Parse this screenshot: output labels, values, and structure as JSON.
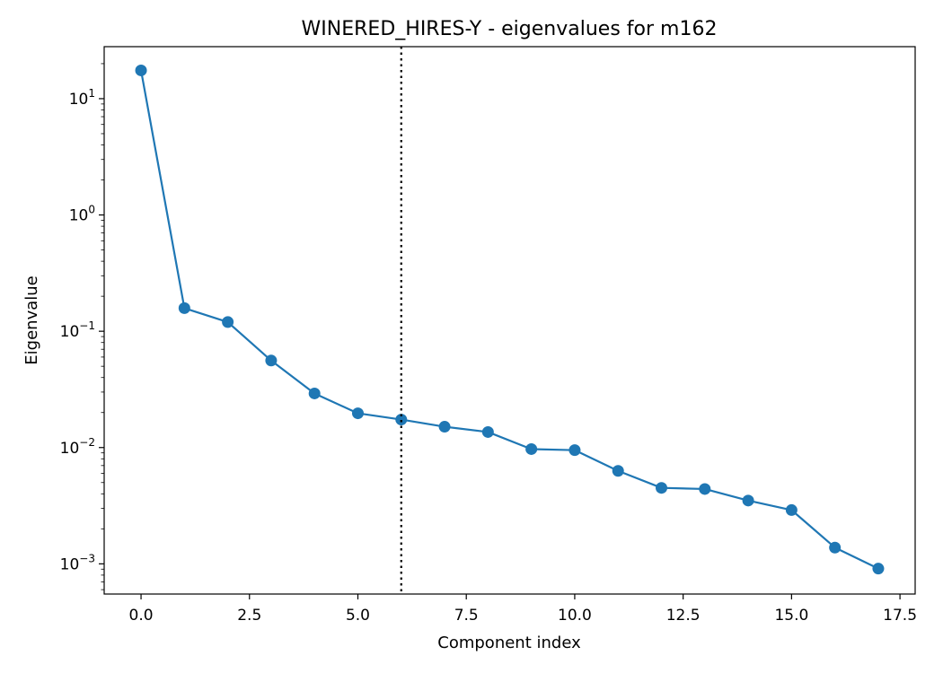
{
  "chart_data": {
    "type": "line",
    "title": "WINERED_HIRES-Y - eigenvalues for m162",
    "xlabel": "Component index",
    "ylabel": "Eigenvalue",
    "yscale": "log",
    "xlim": [
      -0.85,
      17.85
    ],
    "ylim": [
      0.00055,
      28
    ],
    "xticks": [
      0.0,
      2.5,
      5.0,
      7.5,
      10.0,
      12.5,
      15.0,
      17.5
    ],
    "xtick_labels": [
      "0.0",
      "2.5",
      "5.0",
      "7.5",
      "10.0",
      "12.5",
      "15.0",
      "17.5"
    ],
    "yticks": [
      {
        "value": 0.001,
        "base": "10",
        "exp": "−3"
      },
      {
        "value": 0.01,
        "base": "10",
        "exp": "−2"
      },
      {
        "value": 0.1,
        "base": "10",
        "exp": "−1"
      },
      {
        "value": 1,
        "base": "10",
        "exp": "0"
      },
      {
        "value": 10,
        "base": "10",
        "exp": "1"
      }
    ],
    "grid": false,
    "series": [
      {
        "color": "#1f77b4",
        "marker": "circle",
        "x": [
          0,
          1,
          2,
          3,
          4,
          5,
          6,
          7,
          8,
          9,
          10,
          11,
          12,
          13,
          14,
          15,
          16,
          17
        ],
        "y": [
          17.5,
          0.158,
          0.12,
          0.056,
          0.0292,
          0.0197,
          0.0174,
          0.0151,
          0.0136,
          0.0097,
          0.0095,
          0.0063,
          0.0045,
          0.0044,
          0.0035,
          0.0029,
          0.00138,
          0.00091
        ]
      }
    ],
    "vline": {
      "x": 6,
      "style": "dotted",
      "color": "#000000"
    }
  }
}
